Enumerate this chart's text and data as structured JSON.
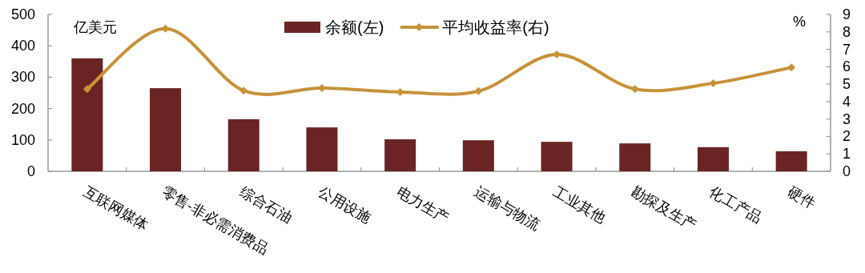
{
  "chart_data": {
    "type": "bar",
    "categories": [
      "互联网媒体",
      "零售-非必需消费品",
      "综合石油",
      "公用设施",
      "电力生产",
      "运输与物流",
      "工业其他",
      "勘探及生产",
      "化工产品",
      "硬件"
    ],
    "series": [
      {
        "name": "余额(左)",
        "color": "#6b2424",
        "values": [
          360,
          265,
          166,
          140,
          102,
          99,
          94,
          89,
          77,
          64
        ]
      },
      {
        "name": "平均收益率(右)",
        "type": "line",
        "axis": "y2",
        "color": "#c8923a",
        "values": [
          4.72,
          8.19,
          4.63,
          4.77,
          4.55,
          4.6,
          6.7,
          4.72,
          5.05,
          5.96
        ]
      }
    ],
    "ylabel": "亿美元",
    "y2label": "%",
    "ylim": [
      0,
      500
    ],
    "yticks": [
      0,
      100,
      200,
      300,
      400,
      500
    ],
    "y2lim": [
      0,
      9
    ],
    "y2ticks": [
      0,
      1,
      2,
      3,
      4,
      5,
      6,
      7,
      8,
      9
    ],
    "marker": "diamond",
    "legend": "top",
    "grid": false
  }
}
